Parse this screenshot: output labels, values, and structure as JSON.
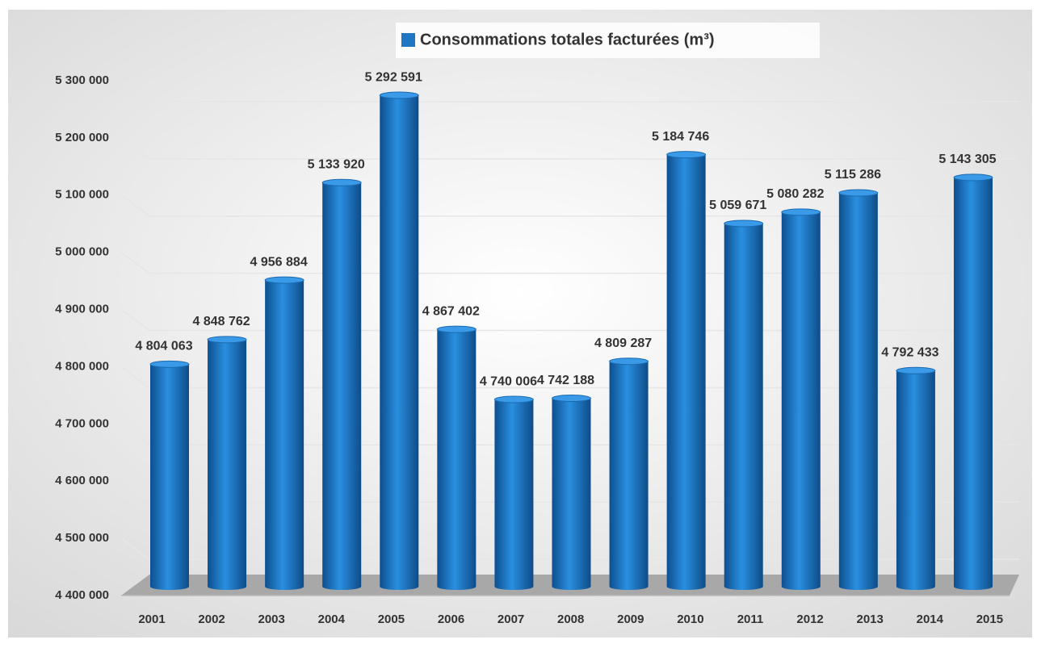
{
  "chart_data": {
    "type": "bar",
    "categories": [
      "2001",
      "2002",
      "2003",
      "2004",
      "2005",
      "2006",
      "2007",
      "2008",
      "2009",
      "2010",
      "2011",
      "2012",
      "2013",
      "2014",
      "2015"
    ],
    "series": [
      {
        "name": "Consommations totales facturées (m³)",
        "color": "#1f77c4",
        "values": [
          4804063,
          4848762,
          4956884,
          5133920,
          5292591,
          4867402,
          4740006,
          4742188,
          4809287,
          5184746,
          5059671,
          5080282,
          5115286,
          4792433,
          5143305
        ],
        "value_labels": [
          "4 804 063",
          "4 848 762",
          "4 956 884",
          "5 133 920",
          "5 292 591",
          "4 867 402",
          "4 740 006",
          "4 742 188",
          "4 809 287",
          "5 184 746",
          "5 059 671",
          "5 080 282",
          "5 115 286",
          "4 792 433",
          "5 143 305"
        ]
      }
    ],
    "ylim": [
      4400000,
      5300000
    ],
    "yticks": [
      {
        "value": 4400000,
        "label": "4 400 000"
      },
      {
        "value": 4500000,
        "label": "4 500 000"
      },
      {
        "value": 4600000,
        "label": "4 600 000"
      },
      {
        "value": 4700000,
        "label": "4 700 000"
      },
      {
        "value": 4800000,
        "label": "4 800 000"
      },
      {
        "value": 4900000,
        "label": "4 900 000"
      },
      {
        "value": 5000000,
        "label": "5 000 000"
      },
      {
        "value": 5100000,
        "label": "5 100 000"
      },
      {
        "value": 5200000,
        "label": "5 200 000"
      },
      {
        "value": 5300000,
        "label": "5 300 000"
      }
    ],
    "grid": true,
    "legend": "top"
  }
}
